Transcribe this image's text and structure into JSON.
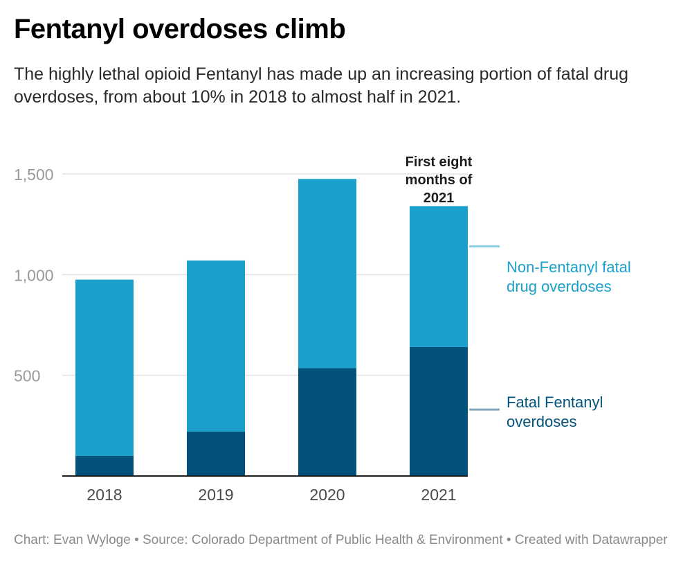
{
  "title": "Fentanyl overdoses climb",
  "subtitle": "The highly lethal opioid Fentanyl has made up an increasing portion of fatal drug overdoses, from about 10% in 2018 to almost half in 2021.",
  "footer": "Chart: Evan Wyloge • Source: Colorado Department of Public Health & Environment • Created with Datawrapper",
  "colors": {
    "fentanyl": "#03527a",
    "non_fentanyl": "#1aa0cb",
    "non_fentanyl_label": "#1aa0cb",
    "fentanyl_label": "#03527a",
    "grid": "#e2e2e2",
    "axis_text": "#9a9a9a"
  },
  "chart_data": {
    "type": "bar",
    "stacked": true,
    "categories": [
      "2018",
      "2019",
      "2020",
      "2021"
    ],
    "series": [
      {
        "name": "Fatal Fentanyl overdoses",
        "values": [
          100,
          220,
          535,
          640
        ]
      },
      {
        "name": "Non-Fentanyl fatal drug overdoses",
        "values": [
          875,
          850,
          940,
          700
        ]
      }
    ],
    "ylim": [
      0,
      1500
    ],
    "yticks": [
      500,
      1000,
      1500
    ],
    "ytick_labels": [
      "500",
      "1,000",
      "1,500"
    ],
    "grid": true,
    "legend": "right, inline labels",
    "annotation": {
      "category": "2021",
      "text": [
        "First eight",
        "months of",
        "2021"
      ]
    }
  }
}
